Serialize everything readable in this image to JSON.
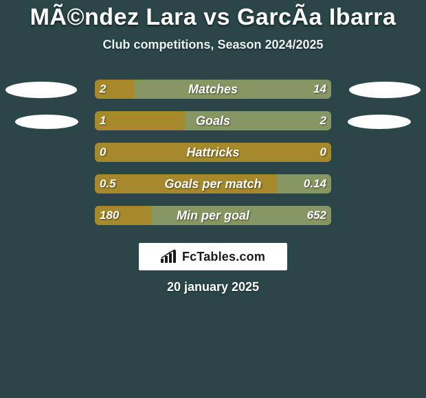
{
  "title": "MÃ©ndez Lara vs GarcÃ­a Ibarra",
  "subtitle": "Club competitions, Season 2024/2025",
  "date": "20 january 2025",
  "logo": "FcTables.com",
  "colors": {
    "background": "#2a4648",
    "left_bar": "#a6892a",
    "right_bar": "#879764",
    "text": "#ffffff"
  },
  "rows": [
    {
      "label": "Matches",
      "left_value": "2",
      "right_value": "14",
      "left_pct": 17,
      "right_pct": 83,
      "show_ellipse": true,
      "ellipse_small": false
    },
    {
      "label": "Goals",
      "left_value": "1",
      "right_value": "2",
      "left_pct": 38,
      "right_pct": 62,
      "show_ellipse": true,
      "ellipse_small": true
    },
    {
      "label": "Hattricks",
      "left_value": "0",
      "right_value": "0",
      "left_pct": 100,
      "right_pct": 0,
      "show_ellipse": false,
      "ellipse_small": false
    },
    {
      "label": "Goals per match",
      "left_value": "0.5",
      "right_value": "0.14",
      "left_pct": 77,
      "right_pct": 23,
      "show_ellipse": false,
      "ellipse_small": false
    },
    {
      "label": "Min per goal",
      "left_value": "180",
      "right_value": "652",
      "left_pct": 24,
      "right_pct": 76,
      "show_ellipse": false,
      "ellipse_small": false
    }
  ]
}
